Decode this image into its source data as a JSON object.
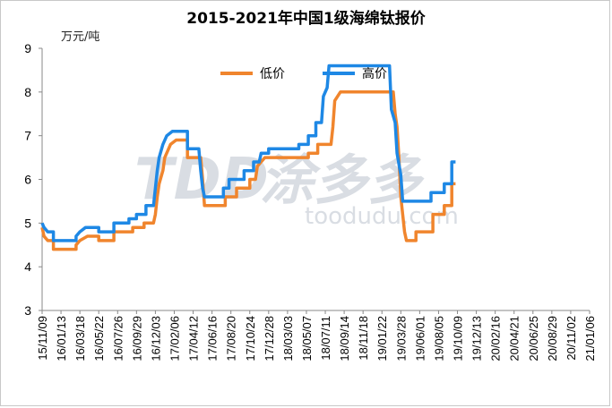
{
  "chart_data": {
    "type": "line",
    "title": "2015-2021年中国1级海绵钛报价",
    "ylabel": "万元/吨",
    "ylim": [
      3,
      9
    ],
    "yticks": [
      3,
      4,
      5,
      6,
      7,
      8,
      9
    ],
    "grid": false,
    "legend_position": "top-center",
    "x_tick_labels": [
      "15/11/09",
      "16/01/13",
      "16/03/18",
      "16/05/22",
      "16/07/26",
      "16/09/29",
      "16/12/03",
      "17/02/06",
      "17/04/12",
      "17/06/16",
      "17/08/20",
      "17/10/24",
      "17/12/28",
      "18/03/03",
      "18/05/07",
      "18/07/11",
      "18/09/14",
      "18/11/18",
      "19/01/22",
      "19/03/28",
      "19/06/01",
      "19/08/05",
      "19/10/09",
      "19/12/13",
      "20/02/16",
      "20/04/21",
      "20/06/25",
      "20/08/29",
      "20/11/02",
      "21/01/06"
    ],
    "series": [
      {
        "name": "低价",
        "color": "#f0852d",
        "points": [
          [
            0,
            4.9
          ],
          [
            0.1,
            4.7
          ],
          [
            0.3,
            4.6
          ],
          [
            0.6,
            4.6
          ],
          [
            0.6,
            4.4
          ],
          [
            1.8,
            4.4
          ],
          [
            1.8,
            4.5
          ],
          [
            2.0,
            4.6
          ],
          [
            2.4,
            4.7
          ],
          [
            3.0,
            4.7
          ],
          [
            3.0,
            4.6
          ],
          [
            3.8,
            4.6
          ],
          [
            3.8,
            4.8
          ],
          [
            4.8,
            4.8
          ],
          [
            4.8,
            4.9
          ],
          [
            5.4,
            4.9
          ],
          [
            5.4,
            5.0
          ],
          [
            5.9,
            5.0
          ],
          [
            6.0,
            5.2
          ],
          [
            6.1,
            5.6
          ],
          [
            6.2,
            5.9
          ],
          [
            6.4,
            6.2
          ],
          [
            6.5,
            6.5
          ],
          [
            6.8,
            6.8
          ],
          [
            7.1,
            6.9
          ],
          [
            7.7,
            6.9
          ],
          [
            7.7,
            6.5
          ],
          [
            8.2,
            6.5
          ],
          [
            8.4,
            6.5
          ],
          [
            8.5,
            6.0
          ],
          [
            8.6,
            5.4
          ],
          [
            9.7,
            5.4
          ],
          [
            9.7,
            5.6
          ],
          [
            10.3,
            5.6
          ],
          [
            10.3,
            5.8
          ],
          [
            11.0,
            5.8
          ],
          [
            11.0,
            6.0
          ],
          [
            11.3,
            6.0
          ],
          [
            11.4,
            6.3
          ],
          [
            11.8,
            6.5
          ],
          [
            14.1,
            6.5
          ],
          [
            14.1,
            6.6
          ],
          [
            14.6,
            6.6
          ],
          [
            14.6,
            6.8
          ],
          [
            15.3,
            6.8
          ],
          [
            15.4,
            7.2
          ],
          [
            15.5,
            7.8
          ],
          [
            15.8,
            8.0
          ],
          [
            18.6,
            8.0
          ],
          [
            18.7,
            7.5
          ],
          [
            18.8,
            7.2
          ],
          [
            18.9,
            6.5
          ],
          [
            19.0,
            5.6
          ],
          [
            19.1,
            5.2
          ],
          [
            19.2,
            4.8
          ],
          [
            19.3,
            4.6
          ],
          [
            19.8,
            4.6
          ],
          [
            19.8,
            4.8
          ],
          [
            20.7,
            4.8
          ],
          [
            20.7,
            5.2
          ],
          [
            21.3,
            5.2
          ],
          [
            21.3,
            5.4
          ],
          [
            21.7,
            5.4
          ],
          [
            21.7,
            5.9
          ],
          [
            21.9,
            5.9
          ]
        ]
      },
      {
        "name": "高价",
        "color": "#1e88e5",
        "points": [
          [
            0,
            5.0
          ],
          [
            0.1,
            4.9
          ],
          [
            0.3,
            4.8
          ],
          [
            0.6,
            4.8
          ],
          [
            0.6,
            4.6
          ],
          [
            1.8,
            4.6
          ],
          [
            1.8,
            4.7
          ],
          [
            2.0,
            4.8
          ],
          [
            2.3,
            4.9
          ],
          [
            3.0,
            4.9
          ],
          [
            3.0,
            4.8
          ],
          [
            3.8,
            4.8
          ],
          [
            3.8,
            5.0
          ],
          [
            4.6,
            5.0
          ],
          [
            4.6,
            5.1
          ],
          [
            5.0,
            5.1
          ],
          [
            5.0,
            5.2
          ],
          [
            5.5,
            5.2
          ],
          [
            5.5,
            5.4
          ],
          [
            5.9,
            5.4
          ],
          [
            6.0,
            5.8
          ],
          [
            6.1,
            6.2
          ],
          [
            6.2,
            6.5
          ],
          [
            6.4,
            6.8
          ],
          [
            6.6,
            7.0
          ],
          [
            6.9,
            7.1
          ],
          [
            7.7,
            7.1
          ],
          [
            7.7,
            6.7
          ],
          [
            8.3,
            6.7
          ],
          [
            8.4,
            6.2
          ],
          [
            8.5,
            5.8
          ],
          [
            8.6,
            5.6
          ],
          [
            9.6,
            5.6
          ],
          [
            9.6,
            5.8
          ],
          [
            9.9,
            5.8
          ],
          [
            9.9,
            6.0
          ],
          [
            10.7,
            6.0
          ],
          [
            10.7,
            6.2
          ],
          [
            11.2,
            6.2
          ],
          [
            11.2,
            6.4
          ],
          [
            11.5,
            6.4
          ],
          [
            11.6,
            6.6
          ],
          [
            12.0,
            6.6
          ],
          [
            12.0,
            6.7
          ],
          [
            13.6,
            6.7
          ],
          [
            13.6,
            6.8
          ],
          [
            14.1,
            6.8
          ],
          [
            14.1,
            7.0
          ],
          [
            14.5,
            7.0
          ],
          [
            14.5,
            7.3
          ],
          [
            14.8,
            7.3
          ],
          [
            14.9,
            7.9
          ],
          [
            15.1,
            8.1
          ],
          [
            15.2,
            8.6
          ],
          [
            18.4,
            8.6
          ],
          [
            18.5,
            7.6
          ],
          [
            18.7,
            7.3
          ],
          [
            18.8,
            6.6
          ],
          [
            19.0,
            6.1
          ],
          [
            19.1,
            5.5
          ],
          [
            20.6,
            5.5
          ],
          [
            20.6,
            5.7
          ],
          [
            21.3,
            5.7
          ],
          [
            21.3,
            5.9
          ],
          [
            21.7,
            5.9
          ],
          [
            21.7,
            6.4
          ],
          [
            21.9,
            6.4
          ]
        ]
      }
    ]
  },
  "watermark": {
    "logo": "TDD",
    "cn": "涂多多",
    "en": "toodudu.com"
  }
}
